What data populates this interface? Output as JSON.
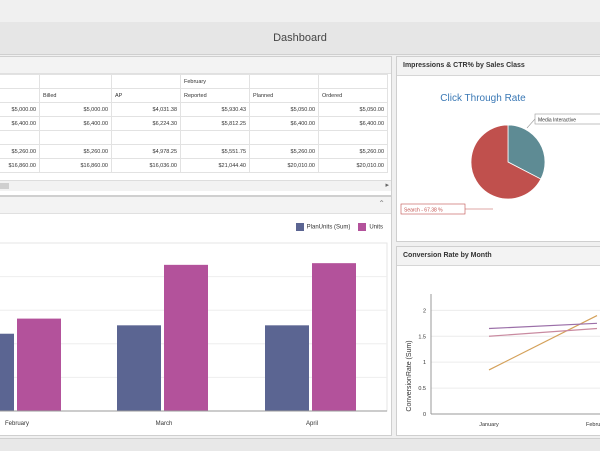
{
  "window": {
    "title": "Dashboard"
  },
  "grid": {
    "month_header": "February",
    "columns": [
      "",
      "Billed",
      "AP",
      "Reported",
      "Planned",
      "Ordered"
    ],
    "rows": [
      [
        "$5,000.00",
        "$5,000.00",
        "$4,031.38",
        "$5,930.43",
        "$5,050.00",
        "$5,050.00"
      ],
      [
        "$6,400.00",
        "$6,400.00",
        "$6,224.30",
        "$5,812.25",
        "$6,400.00",
        "$6,400.00"
      ],
      [
        "",
        "",
        "",
        "",
        "",
        ""
      ],
      [
        "$5,260.00",
        "$5,260.00",
        "$4,978.25",
        "$5,551.75",
        "$5,260.00",
        "$5,260.00"
      ],
      [
        "$16,860.00",
        "$16,860.00",
        "$16,036.00",
        "$21,044.40",
        "$20,010.00",
        "$20,010.00"
      ]
    ]
  },
  "pie_panel": {
    "header": "Impressions & CTR% by Sales Class",
    "title": "Click Through Rate",
    "label_media": "Media Interactive",
    "label_search": "Search - 67.38 %"
  },
  "line_panel": {
    "header": "Conversion Rate by Month",
    "ylabel": "ConversionRate (Sum)"
  },
  "colors": {
    "plan": "#5b6592",
    "units": "#b3529b",
    "pie_red": "#c0504d",
    "pie_teal": "#5e8b94"
  },
  "chart_data": [
    {
      "type": "bar",
      "categories": [
        "February",
        "March",
        "April"
      ],
      "series": [
        {
          "name": "PlanUnits (Sum)",
          "values": [
            46,
            51,
            51
          ]
        },
        {
          "name": "Units",
          "values": [
            55,
            87,
            88
          ]
        }
      ],
      "ylim": [
        0,
        100
      ]
    },
    {
      "type": "pie",
      "slices": [
        {
          "name": "Search",
          "value": 67.38
        },
        {
          "name": "Media Interactive",
          "value": 32.62
        }
      ],
      "title": "Click Through Rate"
    },
    {
      "type": "line",
      "x": [
        "January",
        "February"
      ],
      "series": [
        {
          "values": [
            0.85,
            1.9
          ]
        },
        {
          "values": [
            1.65,
            1.75
          ]
        },
        {
          "values": [
            1.5,
            1.65
          ]
        }
      ],
      "ylabel": "ConversionRate (Sum)",
      "yticks": [
        "0",
        "0.5",
        "1",
        "1.5",
        "2"
      ],
      "ylim": [
        0,
        2.2
      ]
    }
  ]
}
